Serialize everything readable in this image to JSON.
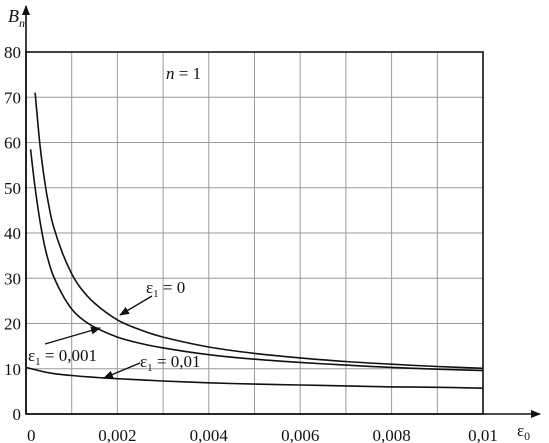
{
  "chart_data": {
    "type": "line",
    "title": "",
    "xlabel": "ε0",
    "ylabel": "Bn",
    "xlim": [
      0,
      0.01
    ],
    "ylim": [
      0,
      80
    ],
    "x_ticks": [
      0,
      0.002,
      0.004,
      0.006,
      0.008,
      0.01
    ],
    "x_tick_labels": [
      "0",
      "0,002",
      "0,004",
      "0,006",
      "0,008",
      "0,01"
    ],
    "y_ticks": [
      0,
      10,
      20,
      30,
      40,
      50,
      60,
      70,
      80
    ],
    "y_tick_labels": [
      "0",
      "10",
      "20",
      "30",
      "40",
      "50",
      "60",
      "70",
      "80"
    ],
    "x_minor_step": 0.001,
    "grid": true,
    "annotation": "n = 1",
    "series": [
      {
        "name": "ε1 = 0",
        "x": [
          0.0002,
          0.0003,
          0.0004,
          0.0005,
          0.0006,
          0.0008,
          0.001,
          0.0012,
          0.0015,
          0.002,
          0.0025,
          0.003,
          0.004,
          0.005,
          0.006,
          0.007,
          0.008,
          0.009,
          0.01
        ],
        "y": [
          71,
          60,
          52,
          46,
          41.5,
          35.5,
          31,
          27.8,
          24.5,
          20.8,
          18.6,
          17.0,
          14.8,
          13.4,
          12.4,
          11.6,
          11.0,
          10.5,
          10.1
        ]
      },
      {
        "name": "ε1 = 0,001",
        "x": [
          0.0001,
          0.0002,
          0.0003,
          0.0004,
          0.0005,
          0.0006,
          0.0008,
          0.001,
          0.0012,
          0.0015,
          0.002,
          0.0025,
          0.003,
          0.004,
          0.005,
          0.006,
          0.007,
          0.008,
          0.009,
          0.01
        ],
        "y": [
          58.5,
          50,
          43,
          37.5,
          33.5,
          30.5,
          26.3,
          23.2,
          21.2,
          19.2,
          17.0,
          15.6,
          14.6,
          13.1,
          12.1,
          11.4,
          10.8,
          10.3,
          9.9,
          9.6
        ]
      },
      {
        "name": "ε1 = 0,01",
        "x": [
          0,
          0.0005,
          0.001,
          0.0015,
          0.002,
          0.003,
          0.004,
          0.005,
          0.006,
          0.007,
          0.008,
          0.009,
          0.01
        ],
        "y": [
          10.3,
          9.1,
          8.5,
          8.1,
          7.8,
          7.3,
          6.9,
          6.6,
          6.4,
          6.2,
          6.0,
          5.9,
          5.7
        ]
      }
    ],
    "series_labels": [
      "ε1 = 0",
      "ε1 = 0,001",
      "ε1 = 0,01"
    ]
  }
}
